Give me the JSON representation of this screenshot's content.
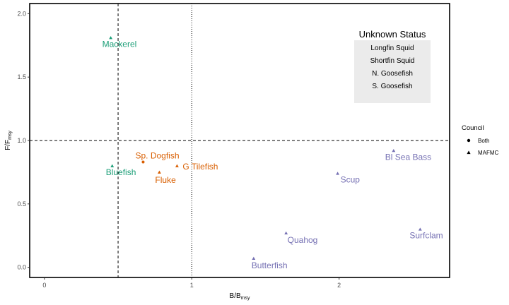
{
  "chart_data": {
    "type": "scatter",
    "xlabel": {
      "main": "B",
      "sep": "/",
      "sub_base": "B",
      "sub": "msy"
    },
    "ylabel": {
      "main": "F",
      "sep": "/",
      "sub_base": "F",
      "sub": "msy"
    },
    "xlim": [
      -0.1,
      2.75
    ],
    "ylim": [
      -0.08,
      2.08
    ],
    "xticks": [
      0,
      1,
      2
    ],
    "xtick_labels": [
      "0",
      "1",
      "2"
    ],
    "yticks": [
      0.0,
      0.5,
      1.0,
      1.5,
      2.0
    ],
    "ytick_labels": [
      "0.0",
      "0.5",
      "1.0",
      "1.5",
      "2.0"
    ],
    "reference_lines": {
      "vertical_dashed": 0.5,
      "vertical_dotted": 1.0,
      "horizontal_dashed": 1.0
    },
    "grid": false,
    "legend": {
      "title": "Council",
      "placement": "right",
      "items": [
        {
          "label": "Both",
          "shape": "circle"
        },
        {
          "label": "MAFMC",
          "shape": "triangle"
        }
      ]
    },
    "colors": {
      "green": "#1b9e77",
      "orange": "#d95f02",
      "purple": "#7570b3"
    },
    "points": [
      {
        "label": "Mackerel",
        "x": 0.45,
        "y": 1.81,
        "council": "MAFMC",
        "color": "green"
      },
      {
        "label": "Bluefish",
        "x": 0.46,
        "y": 0.8,
        "council": "MAFMC",
        "color": "green"
      },
      {
        "label": "Sp. Dogfish",
        "x": 0.67,
        "y": 0.83,
        "council": "Both",
        "color": "orange"
      },
      {
        "label": "G Tilefish",
        "x": 0.9,
        "y": 0.8,
        "council": "MAFMC",
        "color": "orange"
      },
      {
        "label": "Fluke",
        "x": 0.78,
        "y": 0.75,
        "council": "MAFMC",
        "color": "orange"
      },
      {
        "label": "Bl Sea Bass",
        "x": 2.37,
        "y": 0.92,
        "council": "MAFMC",
        "color": "purple"
      },
      {
        "label": "Scup",
        "x": 1.99,
        "y": 0.74,
        "council": "MAFMC",
        "color": "purple"
      },
      {
        "label": "Quahog",
        "x": 1.64,
        "y": 0.27,
        "council": "MAFMC",
        "color": "purple"
      },
      {
        "label": "Surfclam",
        "x": 2.55,
        "y": 0.3,
        "council": "MAFMC",
        "color": "purple"
      },
      {
        "label": "Butterfish",
        "x": 1.42,
        "y": 0.07,
        "council": "MAFMC",
        "color": "purple"
      }
    ],
    "annotation_box": {
      "title": "Unknown Status",
      "items": [
        "Longfin Squid",
        "Shortfin Squid",
        "N. Goosefish",
        "S. Goosefish"
      ]
    }
  }
}
